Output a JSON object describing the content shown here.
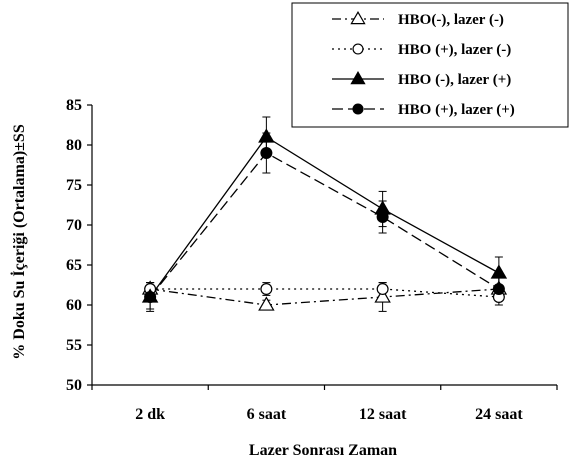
{
  "chart_data": {
    "type": "line",
    "title": "",
    "xlabel": "Lazer Sonrası Zaman",
    "ylabel": "% Doku Su İçeriği (Ortalama)±SS",
    "categories": [
      "2 dk",
      "6 saat",
      "12 saat",
      "24 saat"
    ],
    "ylim": [
      50,
      85
    ],
    "yticks": [
      50,
      55,
      60,
      65,
      70,
      75,
      80,
      85
    ],
    "grid": false,
    "legend_position": "top-right",
    "series": [
      {
        "name": "HBO(-), lazer (-)",
        "values": [
          62,
          60,
          61,
          62
        ],
        "errors": [
          0.8,
          0.6,
          1.8,
          1.5
        ],
        "marker": "triangle-open",
        "line_style": "dash-dot",
        "color": "#000000"
      },
      {
        "name": "HBO (+), lazer (-)",
        "values": [
          62,
          62,
          62,
          61
        ],
        "errors": [
          0.8,
          0.8,
          0.8,
          1.0
        ],
        "marker": "circle-open",
        "line_style": "dotted",
        "color": "#000000"
      },
      {
        "name": "HBO (-), lazer (+)",
        "values": [
          61,
          81,
          72,
          64
        ],
        "errors": [
          1.8,
          2.5,
          2.2,
          2.0
        ],
        "marker": "triangle-filled",
        "line_style": "solid",
        "color": "#000000"
      },
      {
        "name": "HBO (+), lazer (+)",
        "values": [
          61,
          79,
          71,
          62
        ],
        "errors": [
          1.5,
          2.5,
          2.0,
          1.5
        ],
        "marker": "circle-filled",
        "line_style": "dashed",
        "color": "#000000"
      }
    ]
  }
}
